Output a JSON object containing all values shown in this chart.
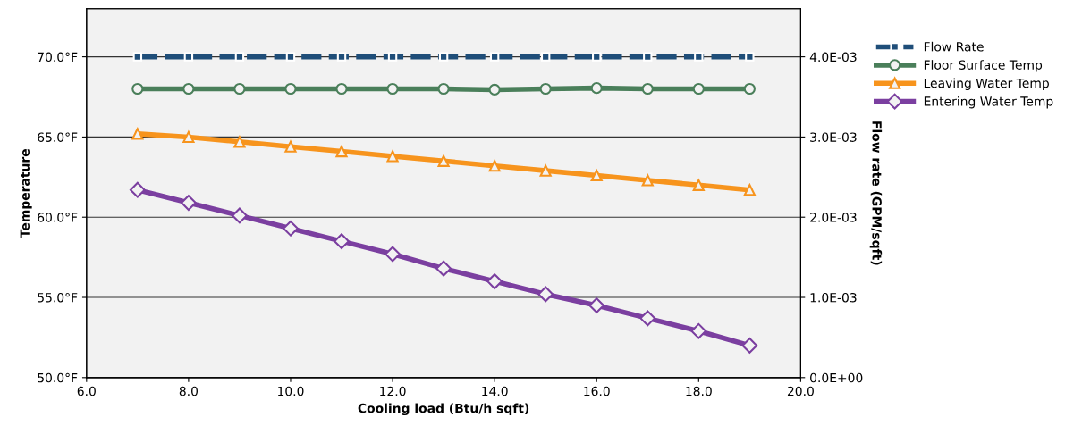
{
  "chart_data": {
    "type": "line",
    "xlabel": "Cooling load (Btu/h sqft)",
    "ylabel": "Temperature",
    "y2label": "Flow rate (GPM/sqft)",
    "x": [
      7,
      8,
      9,
      10,
      11,
      12,
      13,
      14,
      15,
      16,
      17,
      18,
      19
    ],
    "xlim": [
      6,
      20
    ],
    "xticks": [
      {
        "value": 6,
        "label": "6.0"
      },
      {
        "value": 8,
        "label": "8.0"
      },
      {
        "value": 10,
        "label": "10.0"
      },
      {
        "value": 12,
        "label": "12.0"
      },
      {
        "value": 14,
        "label": "14.0"
      },
      {
        "value": 16,
        "label": "16.0"
      },
      {
        "value": 18,
        "label": "18.0"
      },
      {
        "value": 20,
        "label": "20.0"
      }
    ],
    "ylim": [
      50,
      73
    ],
    "yticks": [
      {
        "value": 50,
        "label": "50.0°F"
      },
      {
        "value": 55,
        "label": "55.0°F"
      },
      {
        "value": 60,
        "label": "60.0°F"
      },
      {
        "value": 65,
        "label": "65.0°F"
      },
      {
        "value": 70,
        "label": "70.0°F"
      }
    ],
    "y2lim": [
      0,
      0.0046
    ],
    "y2ticks": [
      {
        "value": 0,
        "label": "0.0E+00"
      },
      {
        "value": 0.001,
        "label": "1.0E-03"
      },
      {
        "value": 0.002,
        "label": "2.0E-03"
      },
      {
        "value": 0.003,
        "label": "3.0E-03"
      },
      {
        "value": 0.004,
        "label": "4.0E-03"
      }
    ],
    "grid": "y",
    "legend": "right",
    "series": [
      {
        "name": "Flow Rate",
        "color": "#1f4e79",
        "axis": "y2",
        "marker": "square",
        "line_style": "dashed",
        "values": [
          0.004,
          0.004,
          0.004,
          0.004,
          0.004,
          0.004,
          0.004,
          0.004,
          0.004,
          0.004,
          0.004,
          0.004,
          0.004
        ]
      },
      {
        "name": "Floor Surface Temp",
        "color": "#4a7f5a",
        "marker": "circle",
        "line_style": "solid",
        "values": [
          68.0,
          68.0,
          68.0,
          68.0,
          68.0,
          68.0,
          68.0,
          67.95,
          68.0,
          68.05,
          68.0,
          68.0,
          68.0
        ]
      },
      {
        "name": "Leaving Water Temp",
        "color": "#f7941d",
        "marker": "triangle",
        "line_style": "solid",
        "values": [
          65.2,
          65.0,
          64.7,
          64.4,
          64.1,
          63.8,
          63.5,
          63.2,
          62.9,
          62.6,
          62.3,
          62.0,
          61.7
        ]
      },
      {
        "name": "Entering Water Temp",
        "color": "#7b3fa0",
        "marker": "diamond",
        "line_style": "solid",
        "values": [
          61.7,
          60.9,
          60.1,
          59.3,
          58.5,
          57.7,
          56.8,
          56.0,
          55.2,
          54.5,
          53.7,
          52.9,
          52.0
        ]
      }
    ]
  }
}
